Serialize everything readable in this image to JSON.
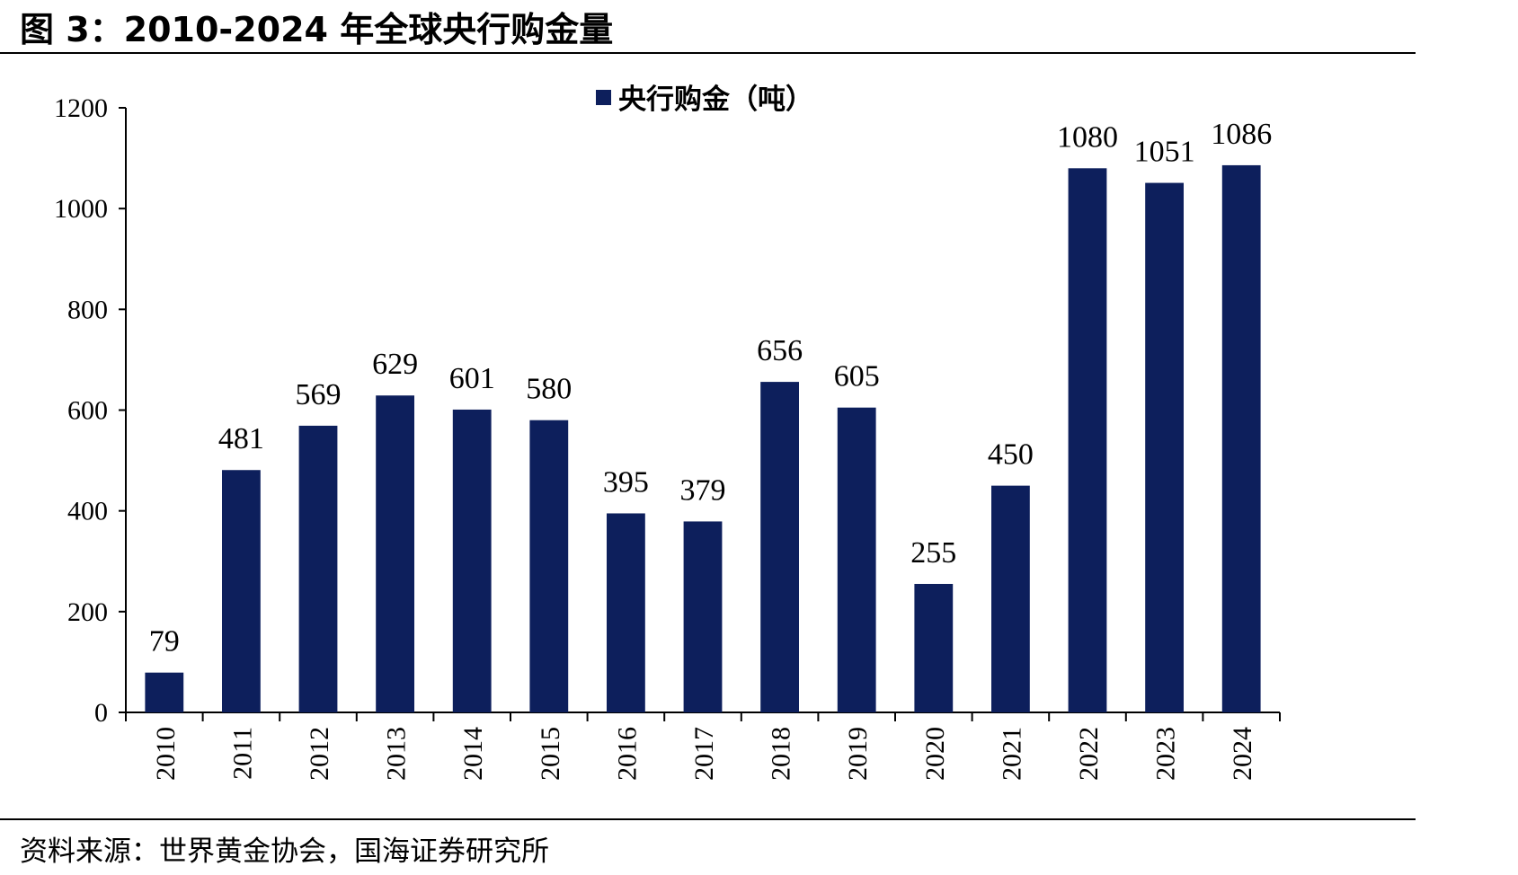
{
  "figure": {
    "title": "图 3：2010-2024 年全球央行购金量",
    "source": "资料来源：世界黄金协会，国海证券研究所"
  },
  "colors": {
    "bar": "#0d1f5c",
    "axis": "#000000"
  },
  "chart_data": {
    "type": "bar",
    "title": "",
    "xlabel": "",
    "ylabel": "",
    "categories": [
      "2010",
      "2011",
      "2012",
      "2013",
      "2014",
      "2015",
      "2016",
      "2017",
      "2018",
      "2019",
      "2020",
      "2021",
      "2022",
      "2023",
      "2024"
    ],
    "series": [
      {
        "name": "央行购金（吨）",
        "values": [
          79,
          481,
          569,
          629,
          601,
          580,
          395,
          379,
          656,
          605,
          255,
          450,
          1080,
          1051,
          1086
        ]
      }
    ],
    "ylim": [
      0,
      1200
    ],
    "yticks": [
      0,
      200,
      400,
      600,
      800,
      1000,
      1200
    ],
    "grid": false,
    "legend": "top-center",
    "data_labels": true
  }
}
